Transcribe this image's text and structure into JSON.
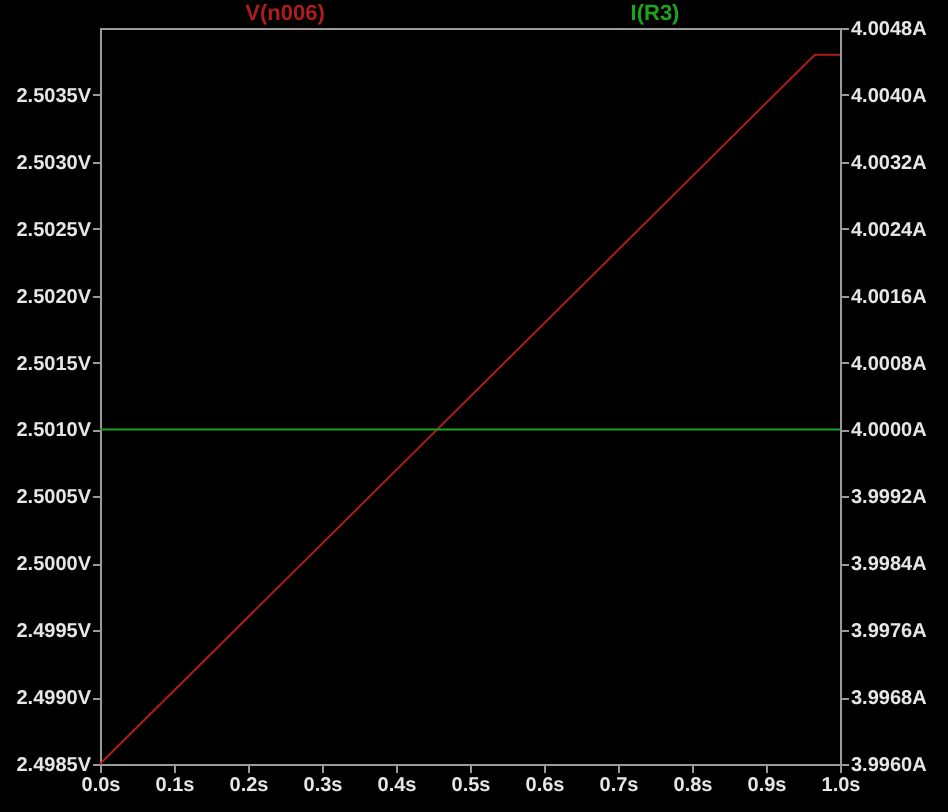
{
  "chart_data": {
    "type": "line",
    "series": [
      {
        "name": "V(n006)",
        "color": "#b01c1c",
        "x": [
          0.0,
          0.966,
          1.0
        ],
        "values": [
          2.4985,
          2.5038,
          2.5038
        ]
      },
      {
        "name": "I(R3)",
        "color": "#1fa31f",
        "axis": "y2",
        "x": [
          0.0,
          1.0
        ],
        "values": [
          4.0,
          4.0
        ]
      }
    ],
    "xlim": [
      0.0,
      1.0
    ],
    "xticks": [
      {
        "value": 0.0,
        "label": "0.0s"
      },
      {
        "value": 0.1,
        "label": "0.1s"
      },
      {
        "value": 0.2,
        "label": "0.2s"
      },
      {
        "value": 0.3,
        "label": "0.3s"
      },
      {
        "value": 0.4,
        "label": "0.4s"
      },
      {
        "value": 0.5,
        "label": "0.5s"
      },
      {
        "value": 0.6,
        "label": "0.6s"
      },
      {
        "value": 0.7,
        "label": "0.7s"
      },
      {
        "value": 0.8,
        "label": "0.8s"
      },
      {
        "value": 0.9,
        "label": "0.9s"
      },
      {
        "value": 1.0,
        "label": "1.0s"
      }
    ],
    "ylim": [
      2.4985,
      2.504
    ],
    "yticks": [
      {
        "value": 2.4985,
        "label": "2.4985V"
      },
      {
        "value": 2.499,
        "label": "2.4990V"
      },
      {
        "value": 2.4995,
        "label": "2.4995V"
      },
      {
        "value": 2.5,
        "label": "2.5000V"
      },
      {
        "value": 2.5005,
        "label": "2.5005V"
      },
      {
        "value": 2.501,
        "label": "2.5010V"
      },
      {
        "value": 2.5015,
        "label": "2.5015V"
      },
      {
        "value": 2.502,
        "label": "2.5020V"
      },
      {
        "value": 2.5025,
        "label": "2.5025V"
      },
      {
        "value": 2.503,
        "label": "2.5030V"
      },
      {
        "value": 2.5035,
        "label": "2.5035V"
      }
    ],
    "y2lim": [
      3.996,
      4.0048
    ],
    "y2ticks": [
      {
        "value": 3.996,
        "label": "3.9960A"
      },
      {
        "value": 3.9968,
        "label": "3.9968A"
      },
      {
        "value": 3.9976,
        "label": "3.9976A"
      },
      {
        "value": 3.9984,
        "label": "3.9984A"
      },
      {
        "value": 3.9992,
        "label": "3.9992A"
      },
      {
        "value": 4.0,
        "label": "4.0000A"
      },
      {
        "value": 4.0008,
        "label": "4.0008A"
      },
      {
        "value": 4.0016,
        "label": "4.0016A"
      },
      {
        "value": 4.0024,
        "label": "4.0024A"
      },
      {
        "value": 4.0032,
        "label": "4.0032A"
      },
      {
        "value": 4.004,
        "label": "4.0040A"
      },
      {
        "value": 4.0048,
        "label": "4.0048A"
      }
    ],
    "grid": false,
    "legend": false,
    "marker": "none",
    "line_style": "solid"
  }
}
